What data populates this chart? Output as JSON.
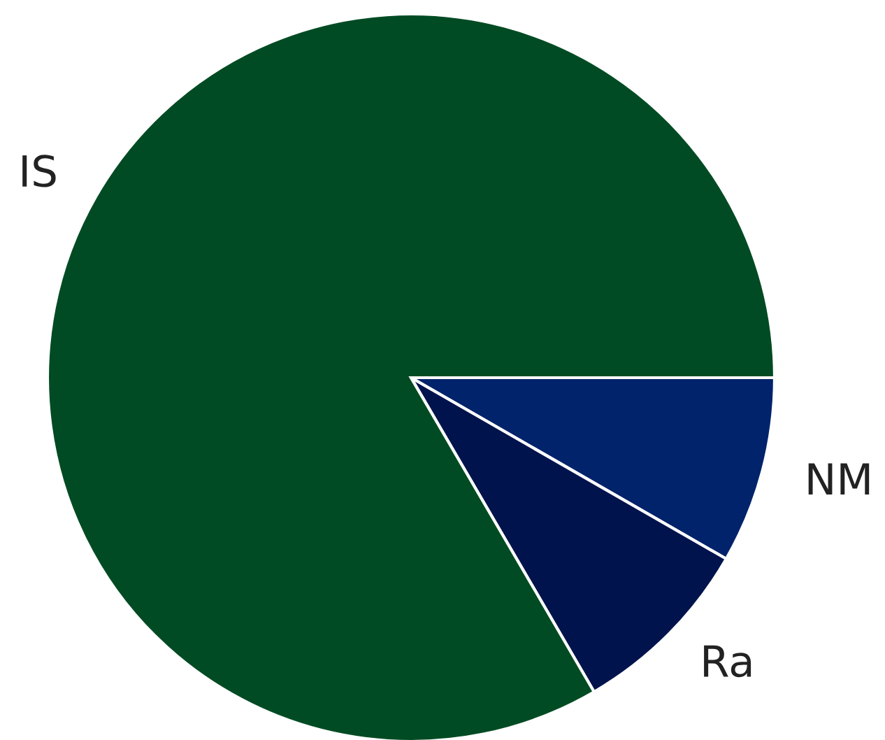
{
  "chart_data": {
    "type": "pie",
    "categories": [
      "NM",
      "Ra",
      "IS"
    ],
    "values": [
      8.3,
      8.3,
      83.4
    ],
    "colors": [
      "#00236b",
      "#00134d",
      "#004b23"
    ]
  }
}
